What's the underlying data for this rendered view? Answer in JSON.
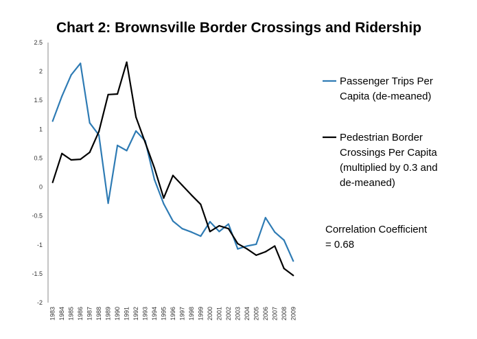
{
  "chart_data": {
    "type": "line",
    "title": "Chart 2: Brownsville Border Crossings and Ridership",
    "xlabel": "",
    "ylabel": "",
    "ylim": [
      -2,
      2.5
    ],
    "yticks": [
      "2.5",
      "2",
      "1.5",
      "1",
      "0.5",
      "0",
      "-0.5",
      "-1",
      "-1.5",
      "-2"
    ],
    "x": [
      "1983",
      "1984",
      "1985",
      "1986",
      "1987",
      "1988",
      "1989",
      "1990",
      "1991",
      "1992",
      "1993",
      "1994",
      "1995",
      "1996",
      "1997",
      "1998",
      "1999",
      "2000",
      "2001",
      "2002",
      "2003",
      "2004",
      "2005",
      "2006",
      "2007",
      "2008",
      "2009"
    ],
    "legend_position": "right",
    "series": [
      {
        "name": "Passenger Trips Per Capita (de-meaned)",
        "legend_lines": [
          "Passenger Trips Per",
          "Capita (de-meaned)"
        ],
        "color": "#2e7bb4",
        "values": [
          1.14,
          1.57,
          1.94,
          2.14,
          1.11,
          0.9,
          -0.28,
          0.72,
          0.63,
          0.97,
          0.8,
          0.13,
          -0.29,
          -0.59,
          -0.72,
          -0.78,
          -0.85,
          -0.6,
          -0.77,
          -0.64,
          -1.07,
          -1.02,
          -0.99,
          -0.53,
          -0.78,
          -0.92,
          -1.28
        ]
      },
      {
        "name": "Pedestrian Border Crossings Per Capita (multiplied by 0.3 and de-meaned)",
        "legend_lines": [
          "Pedestrian Border",
          "Crossings Per Capita",
          "(multiplied by 0.3 and",
          "de-meaned)"
        ],
        "color": "#000000",
        "values": [
          0.08,
          0.58,
          0.47,
          0.48,
          0.6,
          0.96,
          1.6,
          1.61,
          2.16,
          1.21,
          0.77,
          0.33,
          -0.19,
          0.2,
          0.03,
          -0.14,
          -0.3,
          -0.77,
          -0.67,
          -0.72,
          -0.98,
          -1.07,
          -1.18,
          -1.12,
          -1.02,
          -1.41,
          -1.53
        ]
      }
    ],
    "annotation": {
      "lines": [
        "Correlation Coefficient",
        "= 0.68"
      ]
    }
  }
}
